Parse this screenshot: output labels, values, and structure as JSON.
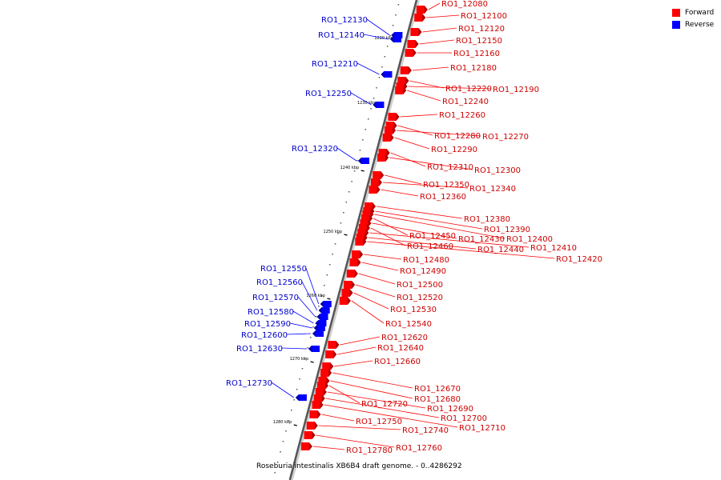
{
  "legend": {
    "forward_label": "Forward",
    "reverse_label": "Reverse",
    "forward_color": "#ff0000",
    "reverse_color": "#0000ff"
  },
  "caption": "Roseburia intestinalis XB6B4 draft genome. - 0..4286292",
  "ruler": {
    "ticks": [
      "1220 kbp",
      "1230 kbp",
      "1240 kbp",
      "1250 kbp",
      "1260 kbp",
      "1270 kbp",
      "1280 kbp"
    ]
  },
  "genes_forward": [
    "RO1_12080",
    "RO1_12100",
    "RO1_12120",
    "RO1_12150",
    "RO1_12160",
    "RO1_12180",
    "RO1_12220",
    "RO1_12190",
    "RO1_12240",
    "RO1_12260",
    "RO1_12280",
    "RO1_12270",
    "RO1_12290",
    "RO1_12310",
    "RO1_12300",
    "RO1_12350",
    "RO1_12340",
    "RO1_12360",
    "RO1_12380",
    "RO1_12390",
    "RO1_12400",
    "RO1_12450",
    "RO1_12430",
    "RO1_12460",
    "RO1_12410",
    "RO1_12440",
    "RO1_12420",
    "RO1_12480",
    "RO1_12490",
    "RO1_12500",
    "RO1_12520",
    "RO1_12530",
    "RO1_12540",
    "RO1_12620",
    "RO1_12640",
    "RO1_12660",
    "RO1_12670",
    "RO1_12680",
    "RO1_12720",
    "RO1_12690",
    "RO1_12700",
    "RO1_12750",
    "RO1_12710",
    "RO1_12740",
    "RO1_12760",
    "RO1_12780"
  ],
  "genes_reverse": [
    "RO1_12130",
    "RO1_12140",
    "RO1_12210",
    "RO1_12250",
    "RO1_12320",
    "RO1_12550",
    "RO1_12560",
    "RO1_12570",
    "RO1_12580",
    "RO1_12590",
    "RO1_12600",
    "RO1_12630",
    "RO1_12730"
  ]
}
